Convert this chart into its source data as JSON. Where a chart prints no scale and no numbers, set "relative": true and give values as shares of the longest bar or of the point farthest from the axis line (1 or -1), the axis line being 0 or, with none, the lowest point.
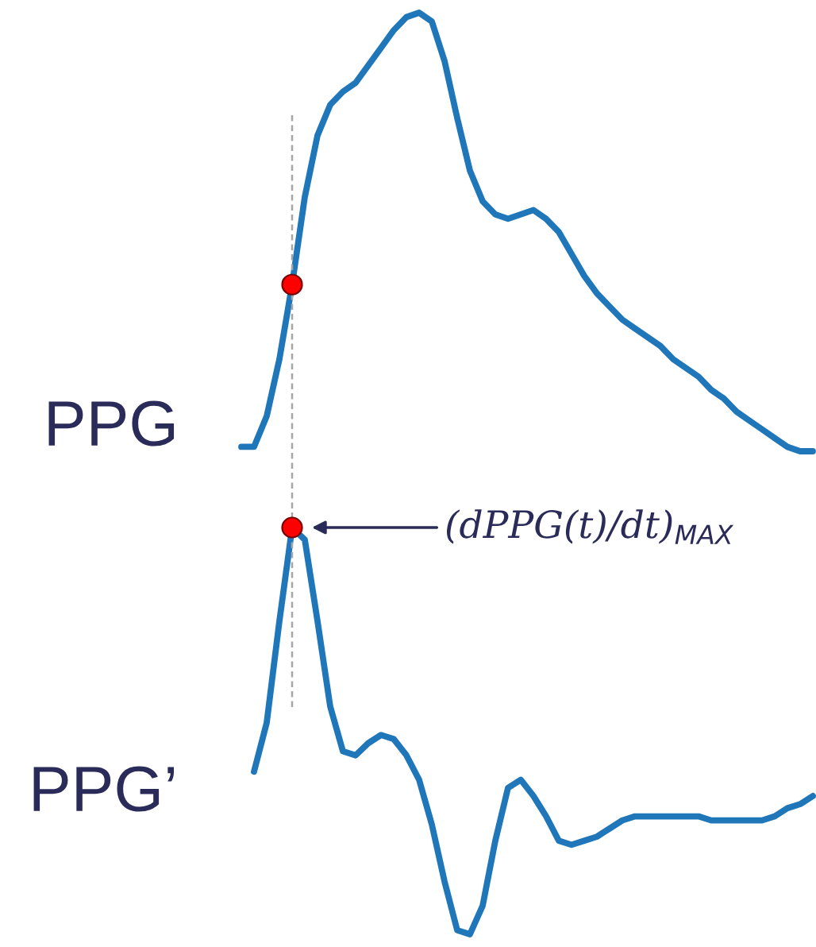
{
  "chart_data": [
    {
      "type": "line",
      "relative": true,
      "ylabel": "PPG",
      "categories": [
        null,
        null,
        null,
        null,
        null,
        null,
        null,
        null,
        null,
        null,
        null,
        null,
        null,
        null,
        null,
        null,
        null,
        null,
        null,
        null,
        null,
        null,
        null,
        null,
        null,
        null,
        null,
        null,
        null,
        null,
        null,
        null,
        null,
        null,
        null,
        null,
        null,
        null,
        null,
        null,
        null,
        null,
        null,
        null,
        null,
        null
      ],
      "series": [
        {
          "color": "#1f77b9",
          "values": [
            0.01,
            0.01,
            0.08,
            0.21,
            0.38,
            0.58,
            0.72,
            0.79,
            0.82,
            0.84,
            0.88,
            0.92,
            0.96,
            0.99,
            1,
            0.98,
            0.89,
            0.76,
            0.64,
            0.57,
            0.54,
            0.53,
            0.54,
            0.55,
            0.53,
            0.5,
            0.45,
            0.4,
            0.36,
            0.33,
            0.3,
            0.28,
            0.26,
            0.24,
            0.21,
            0.19,
            0.17,
            0.14,
            0.12,
            0.09,
            0.07,
            0.05,
            0.03,
            0.01,
            0,
            0
          ]
        }
      ]
    },
    {
      "type": "line",
      "relative": true,
      "ylabel": "PPG’",
      "categories": [
        null,
        null,
        null,
        null,
        null,
        null,
        null,
        null,
        null,
        null,
        null,
        null,
        null,
        null,
        null,
        null,
        null,
        null,
        null,
        null,
        null,
        null,
        null,
        null,
        null,
        null,
        null,
        null,
        null,
        null,
        null,
        null,
        null,
        null,
        null,
        null,
        null,
        null,
        null,
        null,
        null,
        null,
        null,
        null,
        null,
        null
      ],
      "annotations": [
        "(dPPG(t)/dt)$_{MAX}$"
      ],
      "series": [
        {
          "color": "#1f77b9",
          "values": [
            null,
            0.4,
            0.52,
            0.77,
            1,
            0.97,
            0.77,
            0.56,
            0.45,
            0.44,
            0.47,
            0.49,
            0.48,
            0.44,
            0.38,
            0.27,
            0.13,
            0.01,
            0,
            0.07,
            0.23,
            0.36,
            0.38,
            0.34,
            0.29,
            0.23,
            0.22,
            0.23,
            0.24,
            0.26,
            0.28,
            0.29,
            0.29,
            0.29,
            0.29,
            0.29,
            0.29,
            0.28,
            0.28,
            0.28,
            0.28,
            0.28,
            0.29,
            0.31,
            0.32,
            0.34
          ]
        }
      ]
    }
  ]
}
